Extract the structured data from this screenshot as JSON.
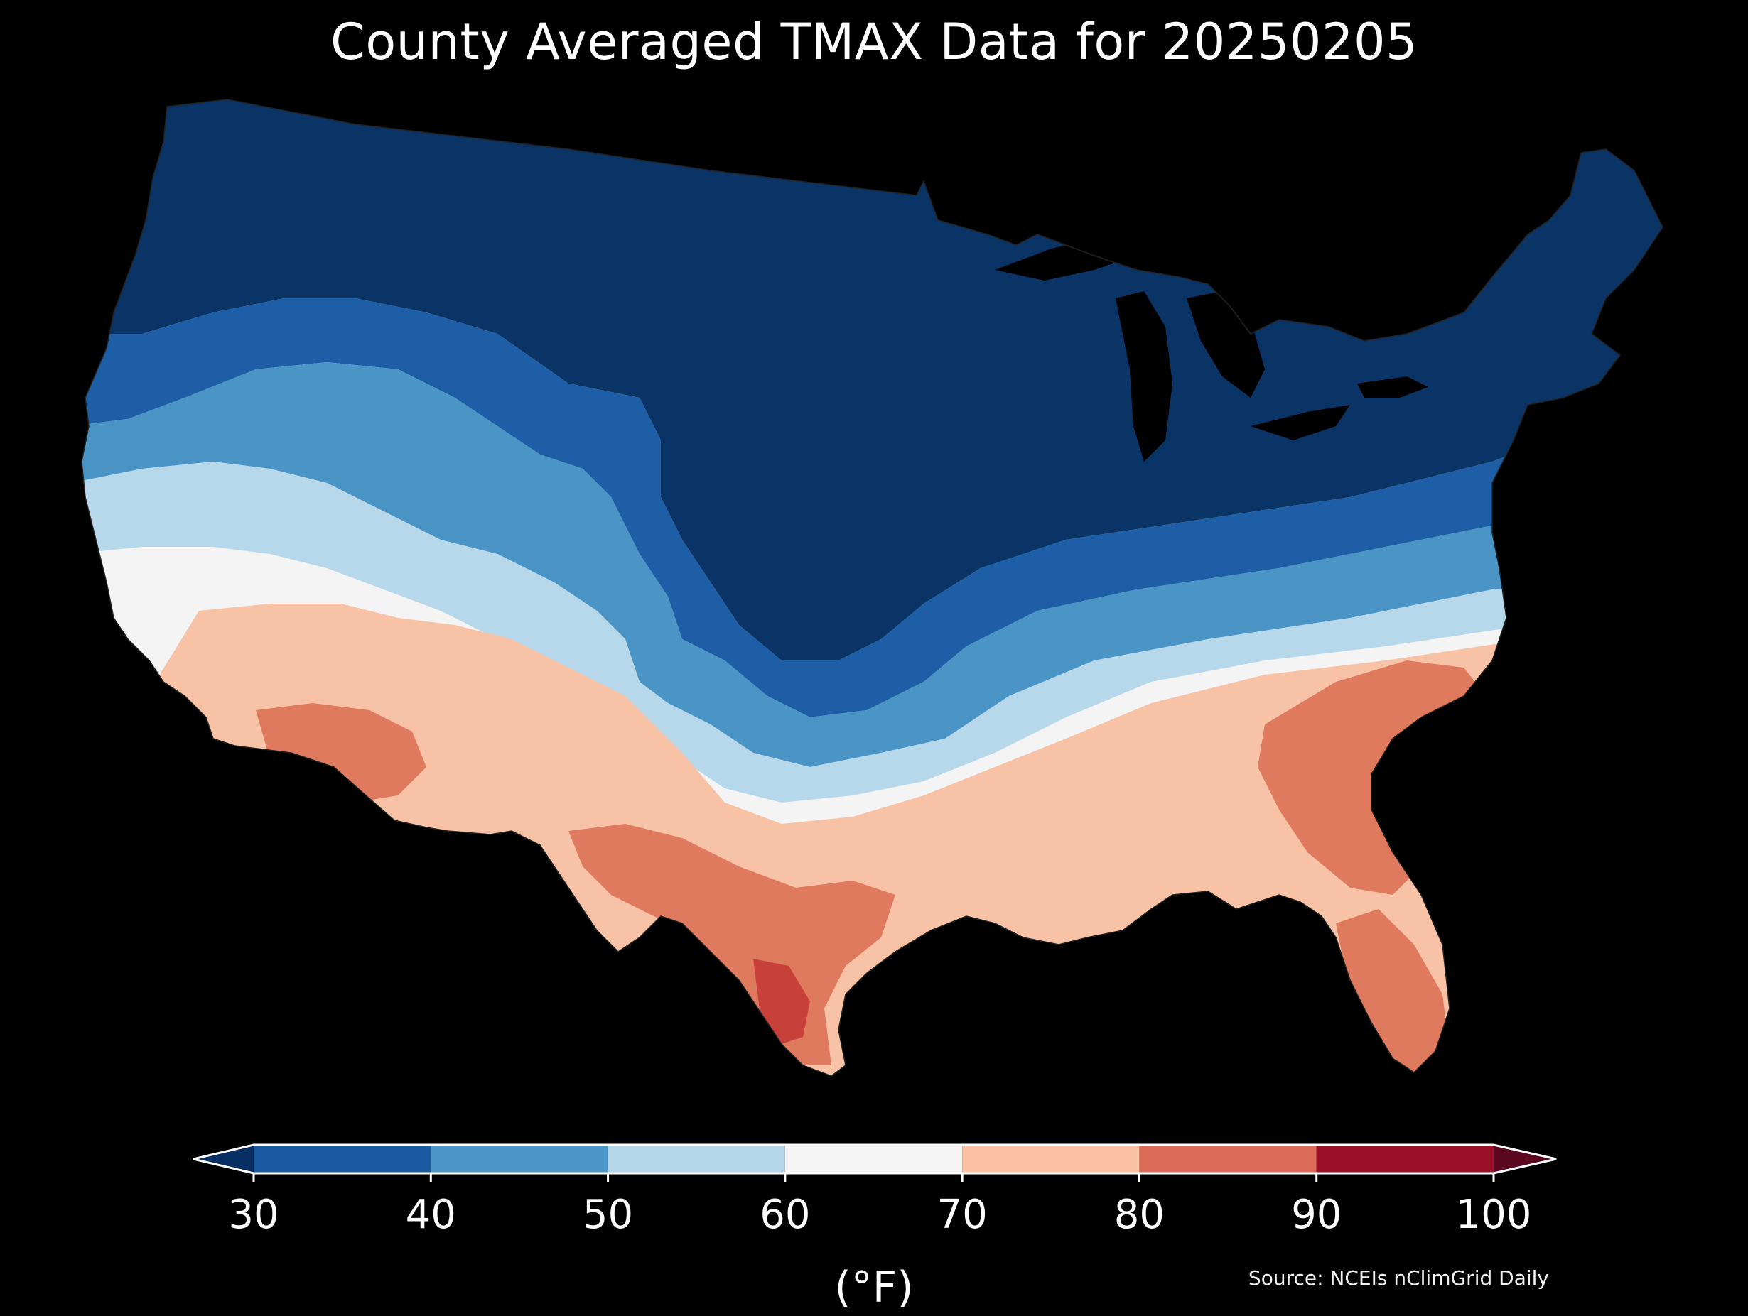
{
  "title": "County Averaged TMAX Data for 20250205",
  "colorbar": {
    "ticks": [
      "30",
      "40",
      "50",
      "60",
      "70",
      "80",
      "90",
      "100"
    ],
    "bins": [
      {
        "from": 30,
        "to": 40,
        "color": "#1a5aa0"
      },
      {
        "from": 40,
        "to": 50,
        "color": "#4b97c8"
      },
      {
        "from": 50,
        "to": 60,
        "color": "#b4d6e8"
      },
      {
        "from": 60,
        "to": 70,
        "color": "#f5f5f5"
      },
      {
        "from": 70,
        "to": 80,
        "color": "#f9c0a2"
      },
      {
        "from": 80,
        "to": 90,
        "color": "#dc6b58"
      },
      {
        "from": 90,
        "to": 100,
        "color": "#9a1026"
      }
    ],
    "under_color": "#082f64",
    "over_color": "#5c0720",
    "unit": "(°F)"
  },
  "source": "Source: NCEIs nClimGrid Daily",
  "map": {
    "background": "#000000",
    "region": "Contiguous United States",
    "color_scheme": "RdBu_r",
    "temperature_bands": [
      {
        "range": "<30",
        "color": "#0a3366"
      },
      {
        "range": "30-40",
        "color": "#1d5ea6"
      },
      {
        "range": "40-50",
        "color": "#4a94c6"
      },
      {
        "range": "50-60",
        "color": "#b7d8ea"
      },
      {
        "range": "60-70",
        "color": "#f4f4f4"
      },
      {
        "range": "70-80",
        "color": "#f8c2a6"
      },
      {
        "range": "80-90",
        "color": "#e07a5e"
      },
      {
        "range": "90-100",
        "color": "#c8403a"
      }
    ]
  }
}
